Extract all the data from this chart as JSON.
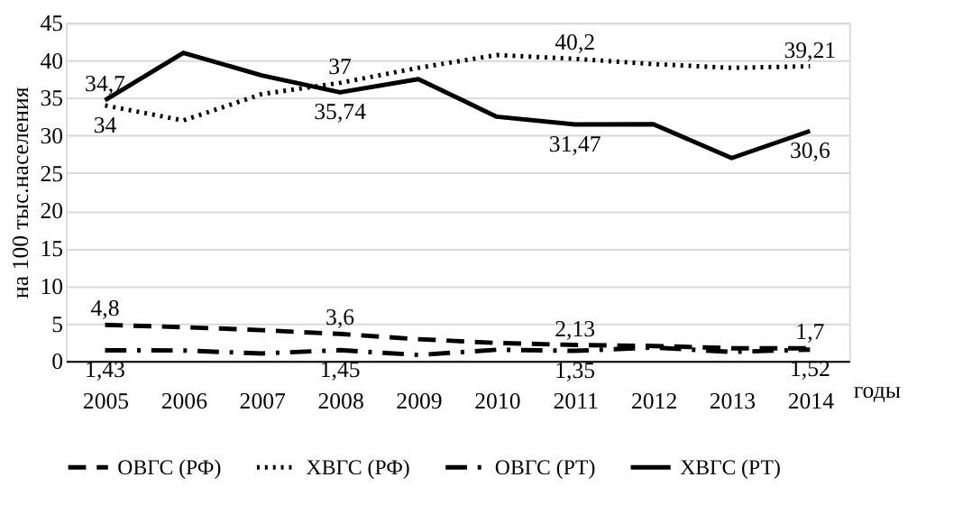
{
  "chart_data": {
    "type": "line",
    "ylabel": "на 100 тыс.населения",
    "xlabel": "годы",
    "categories": [
      "2005",
      "2006",
      "2007",
      "2008",
      "2009",
      "2010",
      "2011",
      "2012",
      "2013",
      "2014"
    ],
    "ylim": [
      0,
      45
    ],
    "yticks": [
      0,
      5,
      10,
      15,
      20,
      25,
      30,
      35,
      40,
      45
    ],
    "grid": "y",
    "legend": "bottom",
    "marker": "none",
    "series": [
      {
        "name": "ОВГС (РФ)",
        "color": "#000000",
        "line_style": "dashed",
        "values": [
          4.8,
          4.5,
          4.1,
          3.6,
          2.9,
          2.4,
          2.13,
          2.0,
          1.7,
          1.7
        ],
        "value_labels": [
          "4,8",
          null,
          null,
          "3,6",
          null,
          null,
          "2,13",
          null,
          null,
          "1,7"
        ]
      },
      {
        "name": "ХВГС (РФ)",
        "color": "#000000",
        "line_style": "dotted",
        "values": [
          34,
          32,
          35.5,
          37,
          39,
          40.7,
          40.2,
          39.5,
          39,
          39.21
        ],
        "value_labels": [
          "34",
          null,
          null,
          "37",
          null,
          null,
          "40,2",
          null,
          null,
          "39,21"
        ]
      },
      {
        "name": "ОВГС (РТ)",
        "color": "#000000",
        "line_style": "dashdot",
        "values": [
          1.43,
          1.4,
          1.0,
          1.45,
          0.8,
          1.5,
          1.35,
          1.8,
          1.2,
          1.52
        ],
        "value_labels": [
          "1,43",
          null,
          null,
          "1,45",
          null,
          null,
          "1,35",
          null,
          null,
          "1,52"
        ]
      },
      {
        "name": "ХВГС (РТ)",
        "color": "#000000",
        "line_style": "solid",
        "values": [
          34.7,
          41,
          38,
          35.74,
          37.5,
          32.5,
          31.47,
          31.5,
          27,
          30.6
        ],
        "value_labels": [
          "34,7",
          null,
          null,
          "35,74",
          null,
          null,
          "31,47",
          null,
          null,
          "30,6"
        ]
      }
    ]
  }
}
